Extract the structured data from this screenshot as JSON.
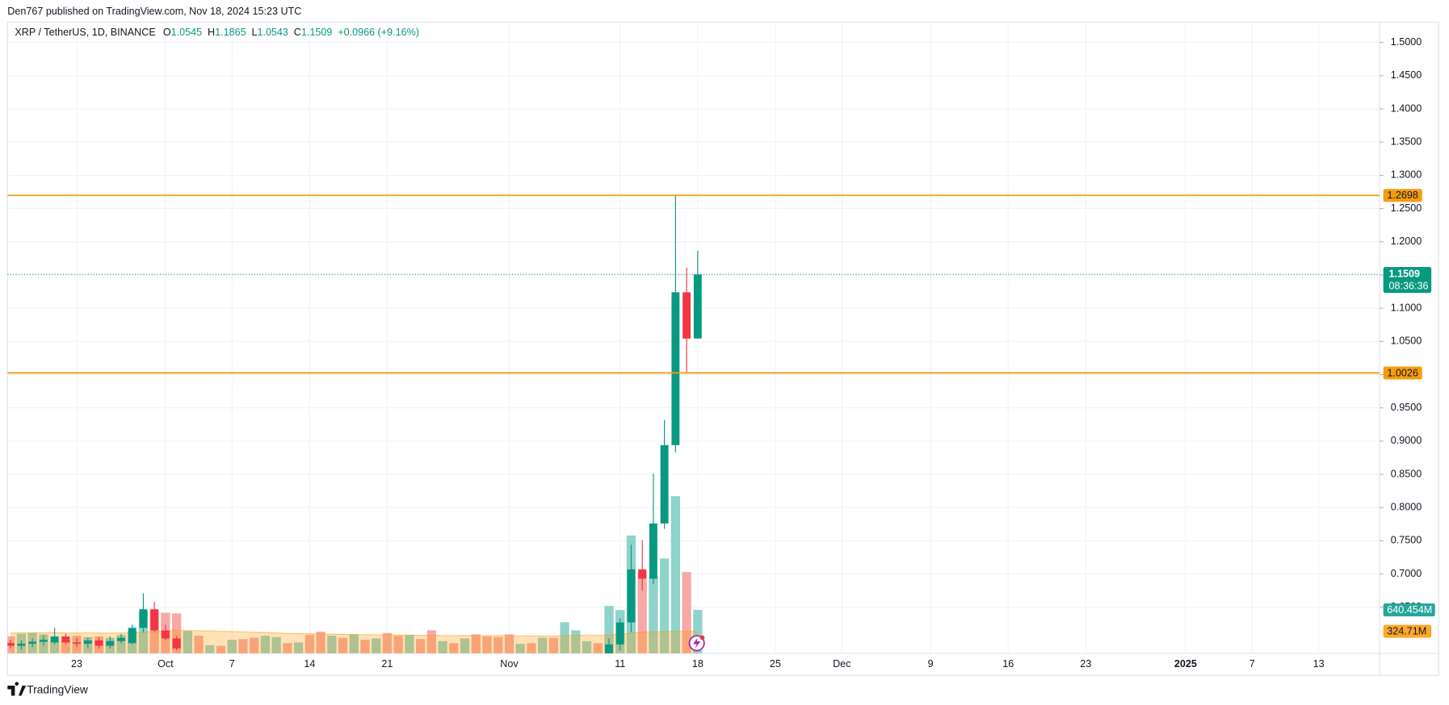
{
  "header": "Den767 published on TradingView.com, Nov 18, 2024 15:23 UTC",
  "footer": "TradingView",
  "chart_data": {
    "type": "candlestick",
    "legend": {
      "symbol": "XRP / TetherUS, 1D, BINANCE",
      "items": [
        {
          "key": "O",
          "value": "1.0545"
        },
        {
          "key": "H",
          "value": "1.1865"
        },
        {
          "key": "L",
          "value": "1.0543"
        },
        {
          "key": "C",
          "value": "1.1509"
        }
      ],
      "change": "+0.0966 (+9.16%)"
    },
    "x": [
      "2024-09-17",
      "2024-09-18",
      "2024-09-19",
      "2024-09-20",
      "2024-09-21",
      "2024-09-22",
      "2024-09-23",
      "2024-09-24",
      "2024-09-25",
      "2024-09-26",
      "2024-09-27",
      "2024-09-28",
      "2024-09-29",
      "2024-09-30",
      "2024-10-01",
      "2024-10-02",
      "2024-11-10",
      "2024-11-11",
      "2024-11-12",
      "2024-11-13",
      "2024-11-14",
      "2024-11-15",
      "2024-11-16",
      "2024-11-17",
      "2024-11-18"
    ],
    "open": [
      0.596,
      0.592,
      0.595,
      0.598,
      0.597,
      0.606,
      0.597,
      0.595,
      0.6,
      0.592,
      0.599,
      0.596,
      0.619,
      0.647,
      0.615,
      0.603,
      0.555,
      0.594,
      0.627,
      0.707,
      0.693,
      0.776,
      0.894,
      1.124,
      1.0545
    ],
    "high": [
      0.601,
      0.6,
      0.603,
      0.608,
      0.619,
      0.61,
      0.604,
      0.604,
      0.605,
      0.606,
      0.61,
      0.624,
      0.671,
      0.658,
      0.624,
      0.607,
      0.603,
      0.633,
      0.744,
      0.751,
      0.851,
      0.932,
      1.2698,
      1.161,
      1.1865
    ],
    "low": [
      0.588,
      0.586,
      0.59,
      0.592,
      0.594,
      0.594,
      0.59,
      0.589,
      0.588,
      0.588,
      0.596,
      0.594,
      0.612,
      0.612,
      0.6,
      0.585,
      0.552,
      0.585,
      0.612,
      0.675,
      0.685,
      0.768,
      0.883,
      1.0026,
      1.0543
    ],
    "close": [
      0.592,
      0.595,
      0.598,
      0.601,
      0.606,
      0.597,
      0.595,
      0.6,
      0.592,
      0.599,
      0.604,
      0.619,
      0.647,
      0.615,
      0.603,
      0.588,
      0.594,
      0.627,
      0.707,
      0.693,
      0.776,
      0.894,
      1.124,
      1.0543,
      1.1509
    ],
    "up_color": "#089981",
    "down_color": "#f23645",
    "volume": {
      "name": "Volume",
      "x": [
        "2024-09-17",
        "2024-09-18",
        "2024-09-19",
        "2024-09-20",
        "2024-09-21",
        "2024-09-22",
        "2024-09-23",
        "2024-09-24",
        "2024-09-25",
        "2024-09-26",
        "2024-09-27",
        "2024-09-28",
        "2024-09-29",
        "2024-09-30",
        "2024-10-01",
        "2024-10-02",
        "2024-10-03",
        "2024-10-04",
        "2024-10-05",
        "2024-10-06",
        "2024-10-07",
        "2024-10-08",
        "2024-10-09",
        "2024-10-10",
        "2024-10-11",
        "2024-10-12",
        "2024-10-13",
        "2024-10-14",
        "2024-10-15",
        "2024-10-16",
        "2024-10-17",
        "2024-10-18",
        "2024-10-19",
        "2024-10-20",
        "2024-10-21",
        "2024-10-22",
        "2024-10-23",
        "2024-10-24",
        "2024-10-25",
        "2024-10-26",
        "2024-10-27",
        "2024-10-28",
        "2024-10-29",
        "2024-10-30",
        "2024-10-31",
        "2024-11-01",
        "2024-11-02",
        "2024-11-03",
        "2024-11-04",
        "2024-11-05",
        "2024-11-06",
        "2024-11-07",
        "2024-11-08",
        "2024-11-09",
        "2024-11-10",
        "2024-11-11",
        "2024-11-12",
        "2024-11-13",
        "2024-11-14",
        "2024-11-15",
        "2024-11-16",
        "2024-11-17",
        "2024-11-18"
      ],
      "values": [
        250,
        290,
        300,
        280,
        180,
        200,
        260,
        240,
        250,
        230,
        270,
        330,
        620,
        640,
        600,
        590,
        330,
        260,
        120,
        110,
        200,
        210,
        230,
        260,
        240,
        150,
        160,
        270,
        320,
        260,
        230,
        280,
        200,
        220,
        300,
        260,
        270,
        210,
        340,
        180,
        150,
        220,
        280,
        250,
        240,
        280,
        140,
        150,
        230,
        230,
        460,
        340,
        180,
        150,
        700,
        640,
        1740,
        1200,
        1130,
        1400,
        2320,
        1200,
        640.454
      ],
      "colors": [
        "#f7a9a7",
        "#8fd3cb",
        "#8fd3cb",
        "#8fd3cb",
        "#8fd3cb",
        "#f7a9a7",
        "#f7a9a7",
        "#8fd3cb",
        "#f7a9a7",
        "#8fd3cb",
        "#8fd3cb",
        "#8fd3cb",
        "#8fd3cb",
        "#f7a9a7",
        "#f7a9a7",
        "#f7a9a7",
        "#8fd3cb",
        "#f7a9a7",
        "#8fd3cb",
        "#f7a9a7",
        "#8fd3cb",
        "#f7a9a7",
        "#f7a9a7",
        "#8fd3cb",
        "#8fd3cb",
        "#f7a9a7",
        "#8fd3cb",
        "#f7a9a7",
        "#f7a9a7",
        "#8fd3cb",
        "#f7a9a7",
        "#8fd3cb",
        "#f7a9a7",
        "#8fd3cb",
        "#f7a9a7",
        "#f7a9a7",
        "#8fd3cb",
        "#f7a9a7",
        "#f7a9a7",
        "#8fd3cb",
        "#f7a9a7",
        "#8fd3cb",
        "#f7a9a7",
        "#f7a9a7",
        "#f7a9a7",
        "#f7a9a7",
        "#8fd3cb",
        "#f7a9a7",
        "#8fd3cb",
        "#f7a9a7",
        "#8fd3cb",
        "#8fd3cb",
        "#8fd3cb",
        "#f7a9a7",
        "#8fd3cb",
        "#8fd3cb",
        "#8fd3cb",
        "#f7a9a7",
        "#8fd3cb",
        "#8fd3cb",
        "#8fd3cb",
        "#f7a9a7",
        "#8fd3cb"
      ],
      "last_label": "640.454M",
      "label_color": "#26a69a"
    },
    "volume_ma": {
      "color": "#ff9800",
      "values": [
        300,
        302,
        304,
        305,
        303,
        300,
        300,
        301,
        300,
        299,
        300,
        302,
        312,
        322,
        330,
        338,
        336,
        334,
        330,
        326,
        322,
        318,
        312,
        306,
        300,
        294,
        290,
        288,
        286,
        284,
        280,
        278,
        276,
        274,
        272,
        270,
        268,
        266,
        266,
        264,
        262,
        262,
        262,
        262,
        262,
        262,
        258,
        256,
        254,
        254,
        262,
        266,
        266,
        264,
        272,
        280,
        300,
        312,
        318,
        320,
        324,
        324,
        324.71
      ],
      "last_label": "324.71M"
    },
    "vlim": [
      0,
      9320
    ],
    "price_lines": [
      {
        "value": 1.2698,
        "color": "#f59d0e"
      },
      {
        "value": 1.0026,
        "color": "#f59d0e"
      }
    ],
    "last_price": {
      "value": 1.1509,
      "countdown": "08:36:36",
      "color": "#089981"
    },
    "xlim": [
      "2024-09-17",
      "2025-01-18"
    ],
    "xticks": [
      {
        "value": "2024-09-23",
        "label": "23"
      },
      {
        "value": "2024-10-01",
        "label": "Oct"
      },
      {
        "value": "2024-10-07",
        "label": "7"
      },
      {
        "value": "2024-10-14",
        "label": "14"
      },
      {
        "value": "2024-10-21",
        "label": "21"
      },
      {
        "value": "2024-11-01",
        "label": "Nov"
      },
      {
        "value": "2024-11-11",
        "label": "11"
      },
      {
        "value": "2024-11-18",
        "label": "18"
      },
      {
        "value": "2024-11-25",
        "label": "25"
      },
      {
        "value": "2024-12-01",
        "label": "Dec"
      },
      {
        "value": "2024-12-09",
        "label": "9"
      },
      {
        "value": "2024-12-16",
        "label": "16"
      },
      {
        "value": "2024-12-23",
        "label": "23"
      },
      {
        "value": "2025-01-01",
        "label": "2025"
      },
      {
        "value": "2025-01-07",
        "label": "7"
      },
      {
        "value": "2025-01-13",
        "label": "13"
      }
    ],
    "ylim": [
      0.5806,
      1.5306
    ],
    "yticks": [
      {
        "value": 0.65,
        "label": "0.6500"
      },
      {
        "value": 0.7,
        "label": "0.7000"
      },
      {
        "value": 0.75,
        "label": "0.7500"
      },
      {
        "value": 0.8,
        "label": "0.8000"
      },
      {
        "value": 0.85,
        "label": "0.8500"
      },
      {
        "value": 0.9,
        "label": "0.9000"
      },
      {
        "value": 0.95,
        "label": "0.9500"
      },
      {
        "value": 1.0,
        "label": "1.0000"
      },
      {
        "value": 1.05,
        "label": "1.0500"
      },
      {
        "value": 1.1,
        "label": "1.1000"
      },
      {
        "value": 1.15,
        "label": "1.1500"
      },
      {
        "value": 1.2,
        "label": "1.2000"
      },
      {
        "value": 1.25,
        "label": "1.2500"
      },
      {
        "value": 1.3,
        "label": "1.3000"
      },
      {
        "value": 1.35,
        "label": "1.3500"
      },
      {
        "value": 1.4,
        "label": "1.4000"
      },
      {
        "value": 1.45,
        "label": "1.4500"
      },
      {
        "value": 1.5,
        "label": "1.5000"
      }
    ],
    "grid": true
  }
}
